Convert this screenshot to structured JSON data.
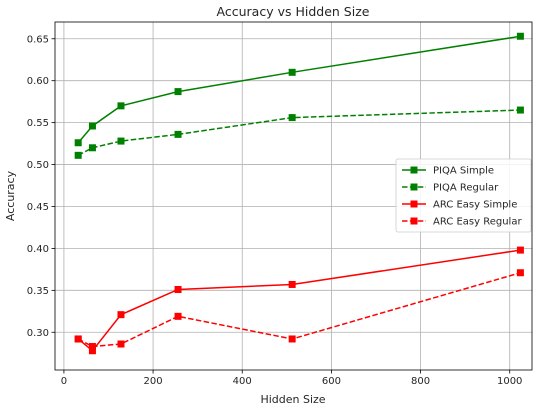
{
  "chart_data": {
    "type": "line",
    "title": "Accuracy vs Hidden Size",
    "xlabel": "Hidden Size",
    "ylabel": "Accuracy",
    "xlim": [
      -20,
      1050
    ],
    "ylim": [
      0.255,
      0.67
    ],
    "xticks": [
      0,
      200,
      400,
      600,
      800,
      1000
    ],
    "yticks": [
      0.3,
      0.35,
      0.4,
      0.45,
      0.5,
      0.55,
      0.6,
      0.65
    ],
    "xtick_labels": [
      "0",
      "200",
      "400",
      "600",
      "800",
      "1000"
    ],
    "ytick_labels": [
      "0.30",
      "0.35",
      "0.40",
      "0.45",
      "0.50",
      "0.55",
      "0.60",
      "0.65"
    ],
    "grid": true,
    "legend_position": "center-right",
    "x": [
      32,
      64,
      128,
      256,
      512,
      1024
    ],
    "series": [
      {
        "name": "PIQA Simple",
        "color": "#008000",
        "linestyle": "solid",
        "marker": "square",
        "values": [
          0.526,
          0.546,
          0.57,
          0.587,
          0.61,
          0.653
        ]
      },
      {
        "name": "PIQA Regular",
        "color": "#008000",
        "linestyle": "dashed",
        "marker": "square",
        "values": [
          0.511,
          0.52,
          0.528,
          0.536,
          0.556,
          0.565
        ]
      },
      {
        "name": "ARC Easy Simple",
        "color": "#ff0000",
        "linestyle": "solid",
        "marker": "square",
        "values": [
          0.292,
          0.278,
          0.321,
          0.351,
          0.357,
          0.398
        ]
      },
      {
        "name": "ARC Easy Regular",
        "color": "#ff0000",
        "linestyle": "dashed",
        "marker": "square",
        "values": [
          0.292,
          0.283,
          0.286,
          0.319,
          0.292,
          0.371
        ]
      }
    ]
  }
}
